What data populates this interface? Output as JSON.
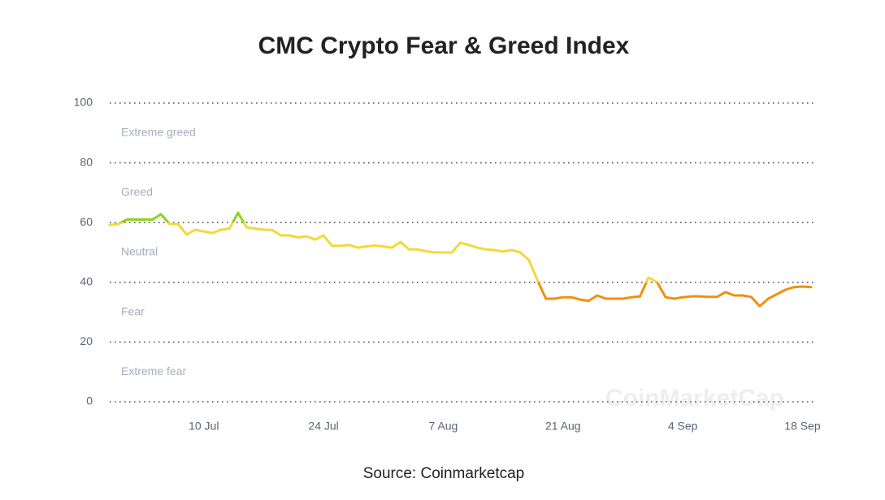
{
  "chart_data": {
    "type": "line",
    "title": "CMC Crypto Fear & Greed Index",
    "source": "Source: Coinmarketcap",
    "watermark": "CoinMarketCap",
    "categories": [
      null,
      null,
      null,
      null,
      null,
      null,
      null,
      null,
      null,
      null,
      null,
      "10 Jul",
      null,
      null,
      null,
      null,
      null,
      null,
      null,
      null,
      null,
      null,
      null,
      null,
      null,
      "24 Jul",
      null,
      null,
      null,
      null,
      null,
      null,
      null,
      null,
      null,
      null,
      null,
      null,
      null,
      "7 Aug",
      null,
      null,
      null,
      null,
      null,
      null,
      null,
      null,
      null,
      null,
      null,
      null,
      null,
      "21 Aug",
      null,
      null,
      null,
      null,
      null,
      null,
      null,
      null,
      null,
      null,
      null,
      null,
      null,
      "4 Sep",
      null,
      null,
      null,
      null,
      null,
      null,
      null,
      null,
      null,
      null,
      null,
      null,
      null,
      "18 Sep",
      null
    ],
    "values": [
      59.2,
      59.5,
      61,
      61,
      61,
      61,
      62.8,
      59.5,
      59.5,
      56,
      57.6,
      57,
      56.5,
      57.6,
      58,
      63.3,
      58.4,
      58,
      57.6,
      57.5,
      55.7,
      55.7,
      55,
      55.4,
      54.3,
      55.7,
      52.2,
      52.2,
      52.5,
      51.6,
      52,
      52.3,
      52,
      51.6,
      53.5,
      51,
      51,
      50.4,
      50,
      50,
      50,
      53.3,
      52.5,
      51.6,
      51,
      50.8,
      50.3,
      50.8,
      50,
      47.5,
      40.8,
      34.5,
      34.5,
      35,
      35,
      34.2,
      33.8,
      35.6,
      34.5,
      34.5,
      34.5,
      35,
      35.3,
      41.6,
      40,
      35,
      34.5,
      35,
      35.3,
      35.3,
      35.1,
      35.1,
      36.7,
      35.6,
      35.6,
      35.1,
      32,
      34.5,
      36,
      37.5,
      38.4,
      38.6,
      38.4
    ],
    "zones": [
      {
        "label": "Extreme fear",
        "from": 0,
        "to": 20,
        "color": "#e0452b"
      },
      {
        "label": "Fear",
        "from": 20,
        "to": 40,
        "color": "#f0900f"
      },
      {
        "label": "Neutral",
        "from": 40,
        "to": 60,
        "color": "#f4d83a"
      },
      {
        "label": "Greed",
        "from": 60,
        "to": 80,
        "color": "#8bd418"
      },
      {
        "label": "Extreme greed",
        "from": 80,
        "to": 100,
        "color": "#16c784"
      }
    ],
    "ylim": [
      0,
      100
    ],
    "yticks": [
      0,
      20,
      40,
      60,
      80,
      100
    ],
    "grid": true
  }
}
